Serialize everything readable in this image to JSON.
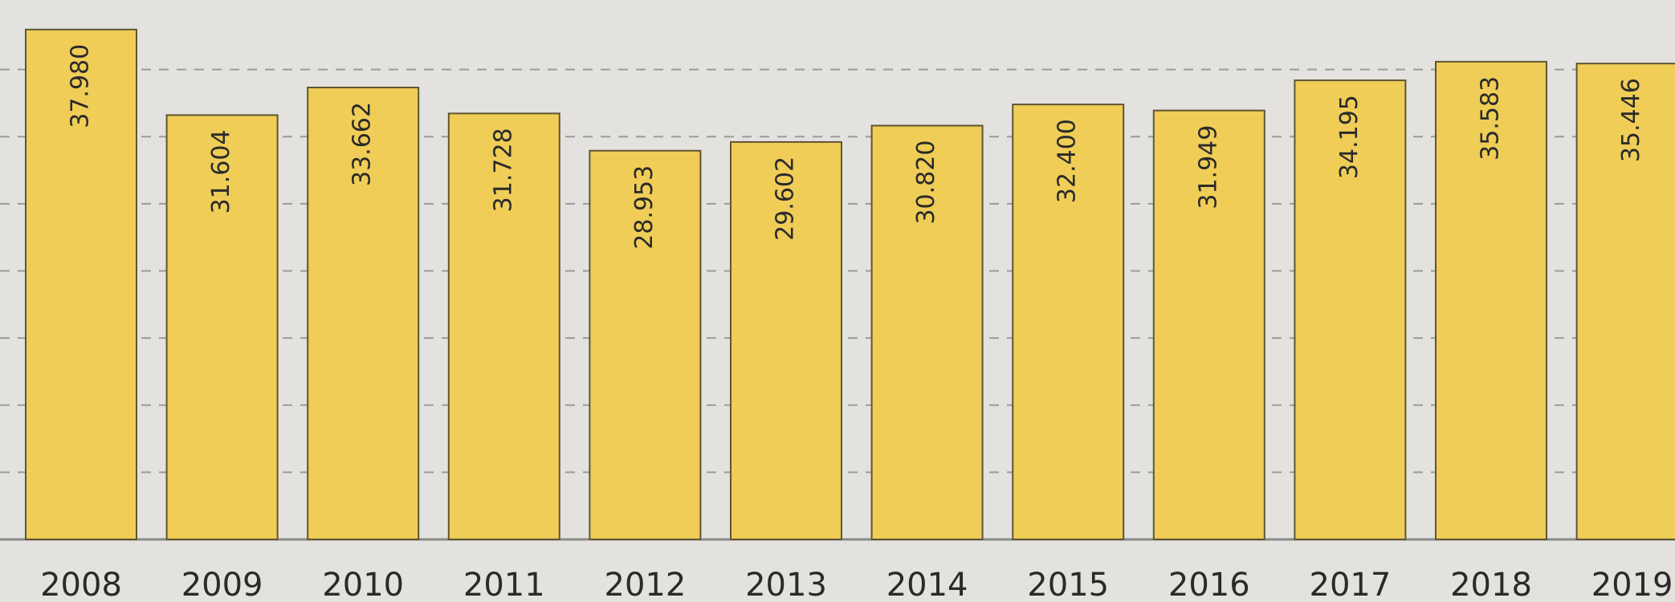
{
  "chart_data": {
    "type": "bar",
    "categories": [
      "2008",
      "2009",
      "2010",
      "2011",
      "2012",
      "2013",
      "2014",
      "2015",
      "2016",
      "2017",
      "2018",
      "2019"
    ],
    "values": [
      37980,
      31604,
      33662,
      31728,
      28953,
      29602,
      30820,
      32400,
      31949,
      34195,
      35583,
      35446
    ],
    "value_labels": [
      "37.980",
      "31.604",
      "33.662",
      "31.728",
      "28.953",
      "29.602",
      "30.820",
      "32.400",
      "31.949",
      "34.195",
      "35.583",
      "35.446"
    ],
    "color": "#efcd57",
    "ylim": [
      0,
      40000
    ],
    "yticks": [
      0,
      5000,
      10000,
      15000,
      20000,
      25000,
      30000,
      35000
    ],
    "grid": true
  }
}
